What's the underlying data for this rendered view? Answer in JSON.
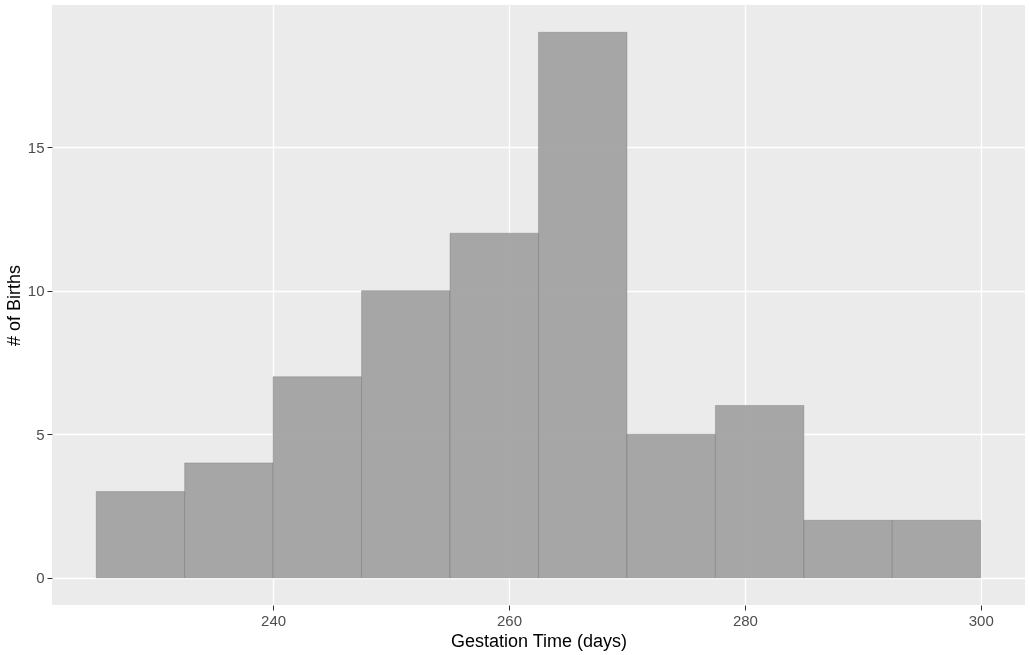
{
  "chart_data": {
    "type": "histogram",
    "xlabel": "Gestation Time (days)",
    "ylabel": "# of Births",
    "bins": [
      225,
      232.5,
      240,
      247.5,
      255,
      262.5,
      270,
      277.5,
      285,
      292.5,
      300
    ],
    "values": [
      3,
      4,
      7,
      10,
      12,
      19,
      5,
      6,
      2,
      2
    ],
    "color": "#a3a3a3",
    "xlim": [
      221.25,
      303.75
    ],
    "xticks": [
      240,
      260,
      280,
      300
    ],
    "ylim": [
      -0.95,
      19.95
    ],
    "yticks": [
      0,
      5,
      10,
      15
    ],
    "grid": true
  }
}
